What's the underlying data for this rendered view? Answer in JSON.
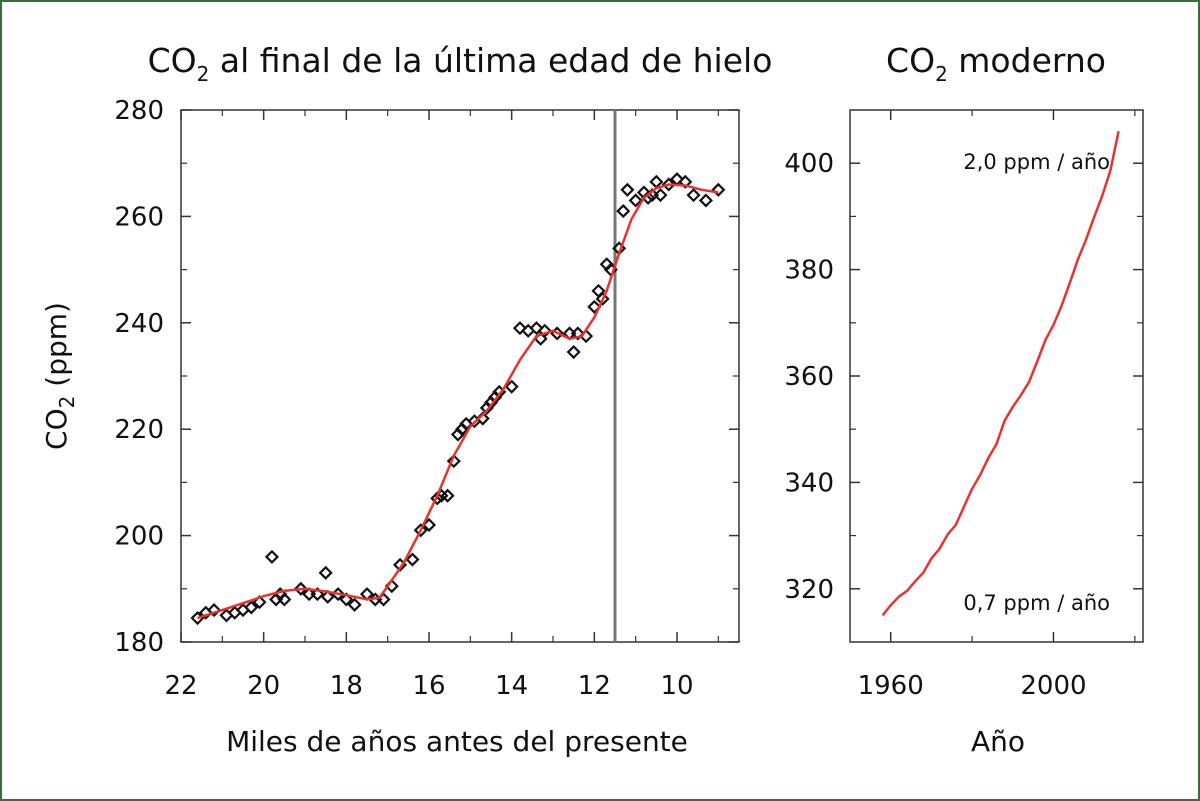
{
  "chart_data": [
    {
      "type": "scatter",
      "title": "CO",
      "title_subscript": "2",
      "title_rest": " al final de la última edad de hielo",
      "ylabel": "CO",
      "ylabel_subscript": "2",
      "ylabel_rest": " (ppm)",
      "xlabel": "Miles de años antes del presente",
      "xlim": [
        22,
        8.5
      ],
      "ylim": [
        180,
        280
      ],
      "x_reversed": true,
      "xticks": [
        22,
        20,
        18,
        16,
        14,
        12,
        10
      ],
      "yticks": [
        180,
        200,
        220,
        240,
        260,
        280
      ],
      "vline_x": 11.5,
      "grid": false,
      "colors": {
        "points": "#111111",
        "fit": "#e8322e",
        "vline": "#777777",
        "axis": "#333333"
      },
      "series": [
        {
          "kind": "points",
          "x": [
            21.6,
            21.4,
            21.2,
            20.9,
            20.7,
            20.5,
            20.3,
            20.1,
            19.8,
            19.7,
            19.6,
            19.5,
            19.1,
            18.9,
            18.7,
            18.5,
            18.45,
            18.2,
            18.0,
            17.8,
            17.5,
            17.3,
            17.1,
            16.9,
            16.7,
            16.4,
            16.2,
            16.0,
            15.8,
            15.7,
            15.55,
            15.4,
            15.3,
            15.2,
            15.1,
            14.9,
            14.7,
            14.6,
            14.5,
            14.4,
            14.3,
            14.0,
            13.8,
            13.6,
            13.4,
            13.3,
            13.2,
            12.9,
            12.6,
            12.5,
            12.4,
            12.2,
            12.0,
            11.9,
            11.8,
            11.7,
            11.6,
            11.4,
            11.3,
            11.2,
            11.0,
            10.8,
            10.7,
            10.6,
            10.5,
            10.4,
            10.2,
            10.0,
            9.8,
            9.6,
            9.3,
            9.0
          ],
          "y": [
            184.5,
            185.5,
            186,
            185,
            185.5,
            186,
            186.5,
            187.5,
            196,
            188,
            189,
            188,
            190,
            189,
            189,
            193,
            188.5,
            189,
            188,
            187,
            189,
            188,
            188,
            190.5,
            194.5,
            195.5,
            201,
            202,
            207,
            207.5,
            207.5,
            214,
            219,
            220,
            221,
            221.5,
            222,
            224,
            225,
            226,
            227,
            228,
            239,
            238.5,
            239,
            237,
            238.5,
            238,
            238,
            234.5,
            238,
            237.5,
            243,
            246,
            244.5,
            251,
            250,
            254,
            261,
            265,
            263,
            264.5,
            263.5,
            264,
            266.5,
            264,
            266,
            267,
            266.5,
            264,
            263,
            265
          ]
        },
        {
          "kind": "fit-curve",
          "x": [
            21.6,
            21,
            20.5,
            20,
            19.5,
            19,
            18.5,
            18,
            17.5,
            17.2,
            17,
            16.6,
            16.2,
            15.8,
            15.4,
            15,
            14.6,
            14.2,
            13.8,
            13.4,
            13,
            12.6,
            12.3,
            12,
            11.7,
            11.4,
            11.1,
            10.8,
            10.5,
            10.2,
            9.8,
            9.4,
            9.0
          ],
          "y": [
            184.5,
            186,
            187.3,
            188.6,
            189.6,
            190,
            189.5,
            188.8,
            188,
            188.3,
            190.5,
            195,
            201,
            207.5,
            215,
            220.5,
            223.5,
            227.5,
            233,
            237.5,
            238.5,
            237,
            237.5,
            241,
            246,
            253,
            259.5,
            263.5,
            265.3,
            266,
            265.8,
            265,
            264.5
          ]
        }
      ]
    },
    {
      "type": "line",
      "title": "CO",
      "title_subscript": "2",
      "title_rest": " moderno",
      "xlabel": "Año",
      "xlim": [
        1950,
        2022
      ],
      "ylim": [
        310,
        410
      ],
      "xticks": [
        1960,
        2000
      ],
      "yticks": [
        320,
        340,
        360,
        380,
        400
      ],
      "grid": false,
      "annotations": [
        "2,0 ppm / año",
        "0,7 ppm / año"
      ],
      "colors": {
        "line": "#e8322e",
        "axis": "#333333"
      },
      "series": [
        {
          "x": [
            1958,
            1960,
            1962,
            1964,
            1966,
            1968,
            1970,
            1972,
            1974,
            1976,
            1978,
            1980,
            1982,
            1984,
            1986,
            1988,
            1990,
            1992,
            1994,
            1996,
            1998,
            2000,
            2002,
            2004,
            2006,
            2008,
            2010,
            2012,
            2014,
            2016
          ],
          "y": [
            315,
            316.9,
            318.5,
            319.6,
            321.4,
            323,
            325.7,
            327.5,
            330.2,
            332,
            335.4,
            338.8,
            341.4,
            344.6,
            347.2,
            351.6,
            354.2,
            356.4,
            358.9,
            362.7,
            366.7,
            369.6,
            373.2,
            377.5,
            381.9,
            385.6,
            389.9,
            393.9,
            398.6,
            406
          ]
        }
      ]
    }
  ]
}
